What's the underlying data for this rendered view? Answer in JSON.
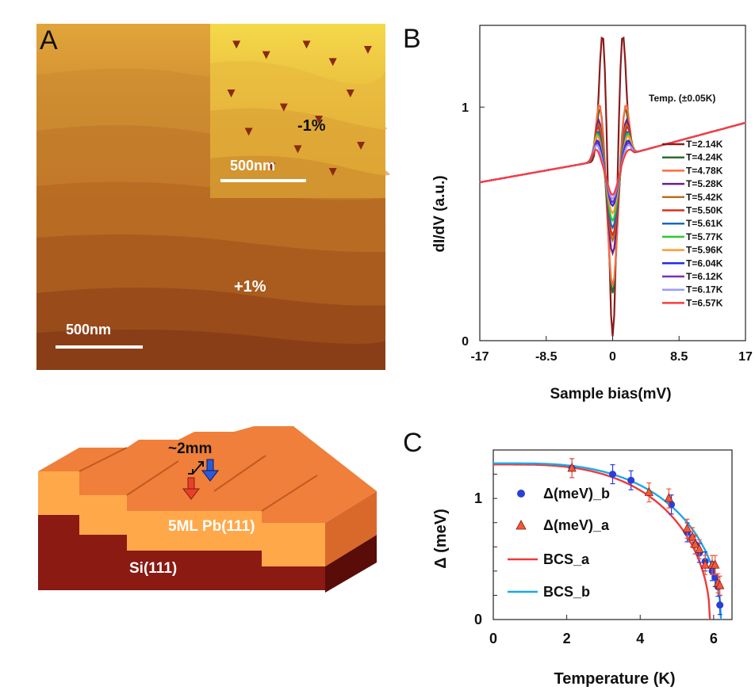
{
  "panel_a": {
    "letter": "A",
    "inset_strain": "-1%",
    "inset_scale": "500nm",
    "main_strain": "+1%",
    "main_scale": "500nm",
    "inset_pits": [
      [
        0.32,
        0.18
      ],
      [
        0.55,
        0.12
      ],
      [
        0.7,
        0.22
      ],
      [
        0.12,
        0.4
      ],
      [
        0.42,
        0.48
      ],
      [
        0.62,
        0.55
      ],
      [
        0.8,
        0.4
      ],
      [
        0.5,
        0.72
      ],
      [
        0.22,
        0.62
      ],
      [
        0.9,
        0.15
      ],
      [
        0.35,
        0.82
      ],
      [
        0.7,
        0.85
      ],
      [
        0.15,
        0.12
      ],
      [
        0.86,
        0.7
      ]
    ]
  },
  "diagram": {
    "thickness_label": "~2mm",
    "film_label": "5ML Pb(111)",
    "substrate_label": "Si(111)",
    "colors": {
      "film_top": "#ef7f3a",
      "film_front": "#ffa84a",
      "film_side": "#d9692a",
      "substrate_front": "#8a1a12",
      "substrate_side": "#5a0c08",
      "arrow_red": "#e8402a",
      "arrow_blue": "#2a5ad8"
    }
  },
  "chart_data": [
    {
      "type": "line",
      "panel": "B",
      "xlabel": "Sample bias(mV)",
      "ylabel": "dI/dV (a.u.)",
      "xticks": [
        "-17",
        "-8.5",
        "0",
        "8.5",
        "17"
      ],
      "yticks": [
        "0",
        "1"
      ],
      "xlim": [
        -17,
        17
      ],
      "ylim": [
        0,
        1.35
      ],
      "legend_title": "Temp. (±0.05K)",
      "legend_position": "right",
      "series": [
        {
          "name": "T=2.14K",
          "color": "#8b1a1a",
          "depth": 0.0,
          "peak": 1.32,
          "width": 0.8
        },
        {
          "name": "T=4.24K",
          "color": "#2e6b2e",
          "depth": 0.26,
          "peak": 1.0,
          "width": 1.0
        },
        {
          "name": "T=4.78K",
          "color": "#ff6a3d",
          "depth": 0.3,
          "peak": 1.02,
          "width": 1.05
        },
        {
          "name": "T=5.28K",
          "color": "#6a1f8a",
          "depth": 0.48,
          "peak": 0.95,
          "width": 1.1
        },
        {
          "name": "T=5.42K",
          "color": "#b8701c",
          "depth": 0.55,
          "peak": 0.93,
          "width": 1.1
        },
        {
          "name": "T=5.50K",
          "color": "#d8301c",
          "depth": 0.58,
          "peak": 0.92,
          "width": 1.15
        },
        {
          "name": "T=5.61K",
          "color": "#1c6ab8",
          "depth": 0.62,
          "peak": 0.9,
          "width": 1.15
        },
        {
          "name": "T=5.77K",
          "color": "#2ec82e",
          "depth": 0.66,
          "peak": 0.89,
          "width": 1.2
        },
        {
          "name": "T=5.96K",
          "color": "#ff9a2e",
          "depth": 0.7,
          "peak": 0.88,
          "width": 1.2
        },
        {
          "name": "T=6.04K",
          "color": "#1c2ee8",
          "depth": 0.74,
          "peak": 0.86,
          "width": 1.2
        },
        {
          "name": "T=6.12K",
          "color": "#7a2eb8",
          "depth": 0.76,
          "peak": 0.85,
          "width": 1.25
        },
        {
          "name": "T=6.17K",
          "color": "#9a9aff",
          "depth": 0.78,
          "peak": 0.84,
          "width": 1.25
        },
        {
          "name": "T=6.57K",
          "color": "#ff3a3a",
          "depth": 0.8,
          "peak": 0.82,
          "width": 1.3
        }
      ]
    },
    {
      "type": "scatter",
      "panel": "C",
      "xlabel": "Temperature (K)",
      "ylabel": "Δ (meV)",
      "xticks": [
        "0",
        "2",
        "4",
        "6"
      ],
      "yticks": [
        "0",
        "1"
      ],
      "xlim": [
        0,
        6.5
      ],
      "ylim": [
        0,
        1.4
      ],
      "legend_position": "left",
      "series": [
        {
          "name": "Δ(meV)_b",
          "marker": "circle",
          "color": "#2a3ed8",
          "x": [
            2.14,
            3.25,
            3.75,
            4.85,
            5.28,
            5.42,
            5.5,
            5.61,
            5.77,
            5.96,
            6.04,
            6.12,
            6.17
          ],
          "y": [
            1.25,
            1.2,
            1.15,
            0.95,
            0.72,
            0.68,
            0.62,
            0.55,
            0.48,
            0.4,
            0.35,
            0.27,
            0.12
          ]
        },
        {
          "name": "Δ(meV)_a",
          "marker": "triangle",
          "color": "#ef5a3a",
          "x": [
            2.14,
            4.24,
            4.78,
            5.28,
            5.42,
            5.5,
            5.61,
            5.77,
            5.96,
            6.04,
            6.12,
            6.17
          ],
          "y": [
            1.25,
            1.05,
            1.0,
            0.75,
            0.68,
            0.62,
            0.58,
            0.45,
            0.45,
            0.45,
            0.3,
            0.28
          ]
        },
        {
          "name": "BCS_a",
          "type": "line",
          "color": "#ef3a3a",
          "delta0": 1.28,
          "tc": 5.9
        },
        {
          "name": "BCS_b",
          "type": "line",
          "color": "#1ca8e8",
          "delta0": 1.29,
          "tc": 6.2
        }
      ]
    }
  ],
  "panel_b_letter": "B",
  "panel_c_letter": "C"
}
